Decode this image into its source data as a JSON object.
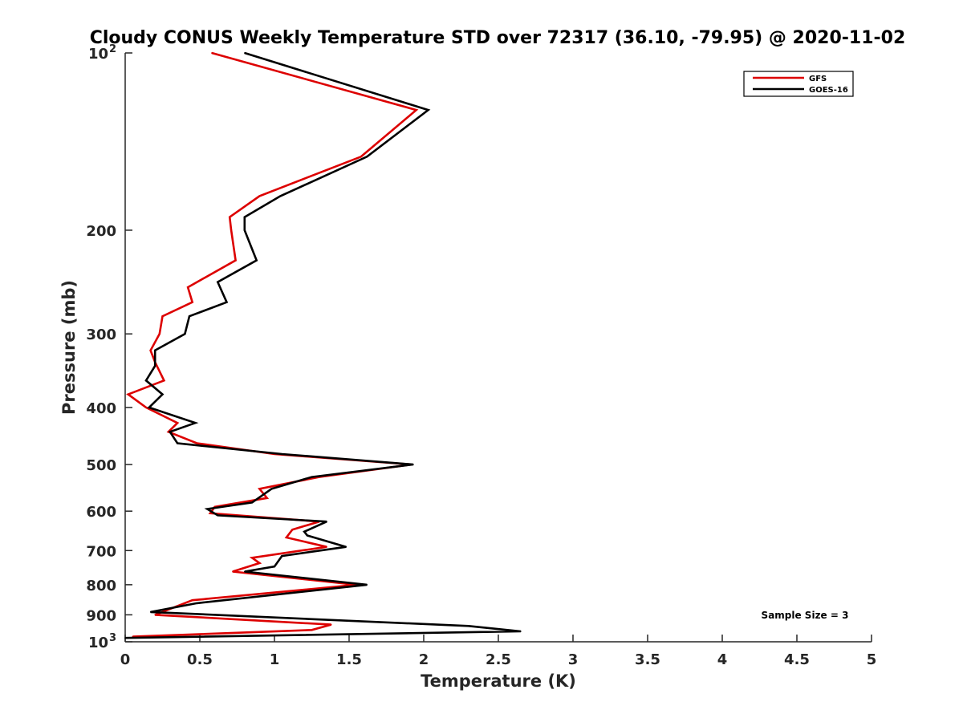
{
  "chart_data": {
    "type": "line",
    "title": "Cloudy CONUS Weekly Temperature STD over 72317 (36.10, -79.95) @ 2020-11-02",
    "xlabel": "Temperature (K)",
    "ylabel": "Pressure (mb)",
    "xlim": [
      0,
      5
    ],
    "ylim": [
      100,
      1000
    ],
    "y_scale": "log",
    "y_reversed": true,
    "grid": false,
    "legend_position": "top-right",
    "x_ticks": [
      "0",
      "0.5",
      "1",
      "1.5",
      "2",
      "2.5",
      "3",
      "3.5",
      "4",
      "4.5",
      "5"
    ],
    "y_ticks": [
      {
        "value": 100,
        "base": "10",
        "exp": "2"
      },
      {
        "value": 200,
        "label": "200"
      },
      {
        "value": 300,
        "label": "300"
      },
      {
        "value": 400,
        "label": "400"
      },
      {
        "value": 500,
        "label": "500"
      },
      {
        "value": 600,
        "label": "600"
      },
      {
        "value": 700,
        "label": "700"
      },
      {
        "value": 800,
        "label": "800"
      },
      {
        "value": 900,
        "label": "900"
      },
      {
        "value": 1000,
        "base": "10",
        "exp": "3"
      }
    ],
    "annotation": "Sample Size = 3",
    "series": [
      {
        "name": "GFS",
        "color": "#dd0000",
        "points": [
          [
            0.58,
            100
          ],
          [
            1.95,
            125
          ],
          [
            1.58,
            150
          ],
          [
            0.9,
            175
          ],
          [
            0.7,
            190
          ],
          [
            0.71,
            200
          ],
          [
            0.74,
            225
          ],
          [
            0.42,
            250
          ],
          [
            0.45,
            265
          ],
          [
            0.25,
            280
          ],
          [
            0.23,
            300
          ],
          [
            0.17,
            320
          ],
          [
            0.2,
            335
          ],
          [
            0.26,
            360
          ],
          [
            0.02,
            380
          ],
          [
            0.14,
            400
          ],
          [
            0.35,
            425
          ],
          [
            0.29,
            440
          ],
          [
            0.48,
            460
          ],
          [
            1.0,
            480
          ],
          [
            1.92,
            500
          ],
          [
            1.3,
            525
          ],
          [
            0.9,
            550
          ],
          [
            0.95,
            570
          ],
          [
            0.6,
            590
          ],
          [
            0.57,
            605
          ],
          [
            1.3,
            625
          ],
          [
            1.12,
            645
          ],
          [
            1.08,
            665
          ],
          [
            1.35,
            690
          ],
          [
            0.85,
            720
          ],
          [
            0.9,
            735
          ],
          [
            0.72,
            760
          ],
          [
            1.55,
            800
          ],
          [
            0.45,
            850
          ],
          [
            0.2,
            900
          ],
          [
            1.38,
            935
          ],
          [
            1.25,
            955
          ],
          [
            0.05,
            980
          ]
        ]
      },
      {
        "name": "GOES-16",
        "color": "#000000",
        "points": [
          [
            0.8,
            100
          ],
          [
            2.03,
            125
          ],
          [
            1.62,
            150
          ],
          [
            1.04,
            175
          ],
          [
            0.8,
            190
          ],
          [
            0.8,
            200
          ],
          [
            0.88,
            225
          ],
          [
            0.62,
            245
          ],
          [
            0.68,
            265
          ],
          [
            0.43,
            280
          ],
          [
            0.4,
            300
          ],
          [
            0.2,
            320
          ],
          [
            0.2,
            340
          ],
          [
            0.14,
            360
          ],
          [
            0.25,
            380
          ],
          [
            0.16,
            400
          ],
          [
            0.47,
            425
          ],
          [
            0.3,
            440
          ],
          [
            0.35,
            460
          ],
          [
            1.05,
            480
          ],
          [
            1.93,
            500
          ],
          [
            1.25,
            525
          ],
          [
            0.98,
            550
          ],
          [
            0.85,
            580
          ],
          [
            0.55,
            595
          ],
          [
            0.62,
            610
          ],
          [
            1.35,
            625
          ],
          [
            1.2,
            650
          ],
          [
            1.22,
            660
          ],
          [
            1.48,
            690
          ],
          [
            1.05,
            715
          ],
          [
            1.0,
            745
          ],
          [
            0.8,
            760
          ],
          [
            1.62,
            800
          ],
          [
            0.48,
            860
          ],
          [
            0.17,
            890
          ],
          [
            2.3,
            940
          ],
          [
            2.65,
            960
          ],
          [
            0.0,
            985
          ]
        ]
      }
    ]
  }
}
